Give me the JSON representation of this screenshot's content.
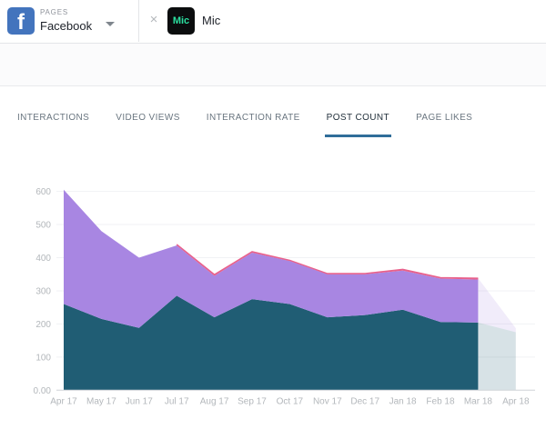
{
  "header": {
    "pages_label": "PAGES",
    "platform": "Facebook",
    "page_token": {
      "avatar_text": "Mic",
      "name": "Mic"
    }
  },
  "icons": {
    "facebook_logo_letter": "f",
    "close_glyph": "×"
  },
  "tabs": [
    {
      "label": "INTERACTIONS",
      "active": false
    },
    {
      "label": "VIDEO VIEWS",
      "active": false
    },
    {
      "label": "INTERACTION RATE",
      "active": false
    },
    {
      "label": "POST COUNT",
      "active": true
    },
    {
      "label": "PAGE LIKES",
      "active": false
    }
  ],
  "colors": {
    "facebook_blue": "#4374bd",
    "mic_logo_green": "#2be0a0",
    "active_tab_underline": "#306d99",
    "teal_series": "#205d74",
    "purple_series": "#a886e2",
    "pink_series": "#e8618c",
    "axis_text": "#b3b7bb",
    "baseline": "#cfd4d7",
    "gridline": "#f1f2f4"
  },
  "chart_data": {
    "type": "area",
    "stacked": true,
    "title": "",
    "xlabel": "",
    "ylabel": "",
    "grid": "horizontal",
    "legend_position": "none",
    "ylim": [
      0,
      600
    ],
    "y_ticks": [
      {
        "label": "600",
        "value": 600
      },
      {
        "label": "500",
        "value": 500
      },
      {
        "label": "400",
        "value": 400
      },
      {
        "label": "300",
        "value": 300
      },
      {
        "label": "200",
        "value": 200
      },
      {
        "label": "100",
        "value": 100
      },
      {
        "label": "0.00",
        "value": 0
      }
    ],
    "x": [
      "Apr 17",
      "May 17",
      "Jun 17",
      "Jul 17",
      "Aug 17",
      "Sep 17",
      "Oct 17",
      "Nov 17",
      "Dec 17",
      "Jan 18",
      "Feb 18",
      "Mar 18",
      "Apr 18"
    ],
    "series": [
      {
        "name": "teal-series",
        "color": "#205d74",
        "values": [
          260,
          215,
          188,
          285,
          220,
          275,
          260,
          220,
          227,
          243,
          206,
          204,
          175
        ]
      },
      {
        "name": "purple-series",
        "color": "#a886e2",
        "values": [
          345,
          265,
          212,
          152,
          125,
          140,
          130,
          130,
          123,
          118,
          131,
          130,
          10
        ]
      },
      {
        "name": "pink-series",
        "color": "#e8618c",
        "values": [
          0,
          0,
          0,
          3,
          4,
          3,
          2,
          2,
          2,
          4,
          3,
          4,
          2
        ]
      }
    ],
    "totals": [
      605,
      480,
      400,
      440,
      349,
      418,
      392,
      352,
      352,
      365,
      340,
      338,
      187
    ],
    "last_point_projected": true,
    "pink_sliver_starts_at_index": 3
  }
}
